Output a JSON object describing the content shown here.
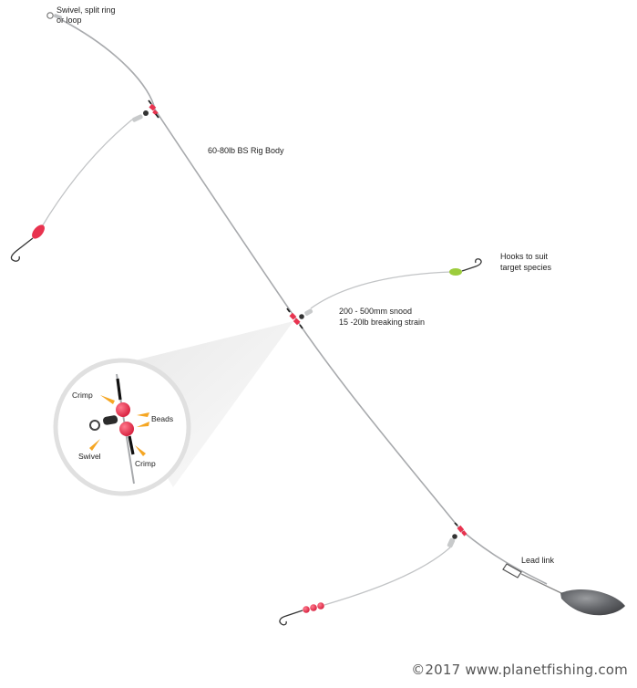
{
  "labels": {
    "swivel_top_line1": "Swivel, split ring",
    "swivel_top_line2": "or loop",
    "rig_body": "60-80lb BS Rig Body",
    "hooks_line1": "Hooks to suit",
    "hooks_line2": "target species",
    "snood_line1": "200 - 500mm snood",
    "snood_line2": "15 -20lb breaking strain",
    "lead_link": "Lead link",
    "inset_crimp_top": "Crimp",
    "inset_beads": "Beads",
    "inset_swivel": "Swivel",
    "inset_crimp_bottom": "Crimp"
  },
  "copyright": "©2017 www.planetfishing.com",
  "colors": {
    "line": "#a8aaad",
    "bead_red": "#e8334f",
    "bead_green": "#9ccc3c",
    "accent_orange": "#f5a623",
    "weight": "#5b5d60"
  },
  "icons": [
    "swivel-icon",
    "hook-icon",
    "bead-icon",
    "crimp-icon",
    "lead-weight-icon",
    "magnifier-inset"
  ]
}
